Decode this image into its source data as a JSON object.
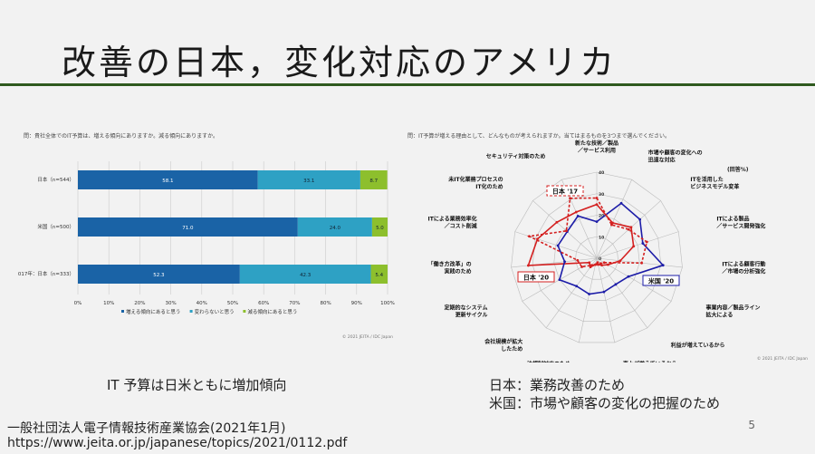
{
  "title": "改善の日本，変化対応のアメリカ",
  "captions": {
    "left": "IT 予算は日米ともに増加傾向",
    "right1": "日本：業務改善のため",
    "right2": "米国：市場や顧客の変化の把握のため"
  },
  "source": {
    "org": "一般社団法人電子情報技術産業協会(2021年1月)",
    "url": "https://www.jeita.or.jp/japanese/topics/2021/0112.pdf"
  },
  "page_number": "5",
  "colors": {
    "dark": "#1a63a6",
    "mid": "#2ea1c4",
    "green": "#8dbf2d",
    "red": "#d42020",
    "blue": "#1c1ca8",
    "rule": "#2f5a1f"
  },
  "chart_data": [
    {
      "type": "bar",
      "stacked": true,
      "orientation": "horizontal",
      "title": "問：貴社全体でのIT予算は、増える傾向にありますか。減る傾向にありますか。",
      "categories": [
        "日本（n=544）",
        "米国（n=500）",
        "2017年：日本（n=333）"
      ],
      "series": [
        {
          "name": "増える傾向にあると思う",
          "values": [
            58.1,
            71.0,
            52.3
          ]
        },
        {
          "name": "変わらないと思う",
          "values": [
            33.1,
            24.0,
            42.3
          ]
        },
        {
          "name": "減る傾向にあると思う",
          "values": [
            8.7,
            5.0,
            5.4
          ]
        }
      ],
      "xticks": [
        "0%",
        "10%",
        "20%",
        "30%",
        "40%",
        "50%",
        "60%",
        "70%",
        "80%",
        "90%",
        "100%"
      ],
      "xlim": [
        0,
        100
      ],
      "legend": "bottom",
      "copyright": "© 2021 JEITA / IDC Japan"
    },
    {
      "type": "radar",
      "title": "問：IT予算が増える理由として、どんなものが考えられますか。当てはまるものを3つまで選んでください。",
      "unit": "(回答%)",
      "axes": [
        "新たな技術／製品\n／サービス利用",
        "市場や顧客の変化への\n迅速な対応",
        "ITを活用した\nビジネスモデル変革",
        "ITによる製品\n／サービス開発強化",
        "ITによる顧客行動\n／市場の分析強化",
        "事業内容／製品ライン\n拡大による",
        "利益が増えているから",
        "売上が増えているから",
        "法規制対応のため",
        "会社規模が拡大\nしたため",
        "定期的なシステム\n更新サイクル",
        "「働き方改革」の\n実践のため",
        "ITによる業務効率化\n／コスト削減",
        "未IT化業務プロセスの\nIT化のため",
        "セキュリティ対策のため"
      ],
      "rlim": [
        0,
        40
      ],
      "rticks": [
        "0",
        "10",
        "20",
        "30",
        "40"
      ],
      "series": [
        {
          "name": "日本 '20",
          "values": [
            25,
            18,
            21.5,
            18,
            11,
            6,
            4,
            3,
            3,
            5,
            4,
            32,
            29,
            25,
            23.5
          ]
        },
        {
          "name": "米国 '20",
          "values": [
            17,
            28,
            27,
            22.5,
            31,
            17,
            15,
            16,
            17,
            16,
            20,
            15,
            19,
            18.5,
            21.5
          ]
        },
        {
          "name": "日本 '17",
          "values": [
            28,
            17,
            20,
            24.5,
            21,
            4,
            3,
            2,
            3,
            4,
            8,
            9,
            33,
            19,
            30.5
          ]
        }
      ],
      "copyright": "© 2021 JEITA / IDC Japan"
    }
  ]
}
